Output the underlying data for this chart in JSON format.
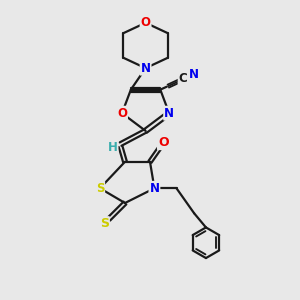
{
  "bg_color": "#e8e8e8",
  "bond_color": "#1a1a1a",
  "bond_width": 1.6,
  "atom_colors": {
    "N": "#0000ee",
    "O": "#ee0000",
    "S": "#cccc00",
    "C": "#1a1a1a",
    "H": "#3aadad"
  },
  "font_size": 8.5
}
